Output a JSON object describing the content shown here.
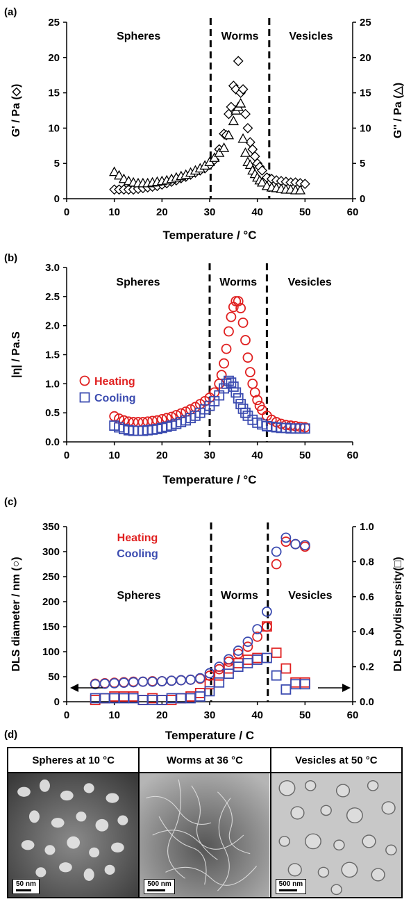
{
  "panel_labels": {
    "a": "(a)",
    "b": "(b)",
    "c": "(c)",
    "d": "(d)"
  },
  "colors": {
    "heating": "#e02020",
    "cooling": "#3b4bb0",
    "black": "#000000"
  },
  "chart_data": [
    {
      "id": "a",
      "type": "scatter",
      "xlabel": "Temperature / °C",
      "ylabel": "G' / Pa (◇)",
      "y2label": "G'' / Pa (△)",
      "xlim": [
        0,
        60
      ],
      "ylim": [
        0,
        25
      ],
      "y2lim": [
        0,
        25
      ],
      "xticks": [
        "0",
        "10",
        "20",
        "30",
        "40",
        "50",
        "60"
      ],
      "yticks": [
        "0",
        "5",
        "10",
        "15",
        "20",
        "25"
      ],
      "y2ticks": [
        "0",
        "5",
        "10",
        "15",
        "20",
        "25"
      ],
      "regions": [
        "Spheres",
        "Worms",
        "Vesicles"
      ],
      "boundaries": [
        30.2,
        42.5
      ],
      "series": [
        {
          "marker": "diamond",
          "axis": "left",
          "x": [
            10,
            11,
            12,
            13,
            14,
            15,
            16,
            17,
            18,
            19,
            20,
            21,
            22,
            23,
            24,
            25,
            26,
            27,
            28,
            29,
            30,
            31,
            32,
            33,
            33.5,
            34,
            34.5,
            35,
            35.5,
            36,
            36.5,
            37,
            37.5,
            38,
            38.5,
            39,
            39.5,
            40,
            40.5,
            41,
            42,
            43,
            44,
            45,
            46,
            47,
            48,
            49,
            50
          ],
          "y": [
            1.3,
            1.3,
            1.3,
            1.3,
            1.3,
            1.4,
            1.5,
            1.6,
            1.7,
            1.8,
            2.0,
            2.2,
            2.4,
            2.6,
            2.9,
            3.1,
            3.4,
            3.7,
            4.0,
            4.3,
            4.8,
            5.5,
            7.0,
            9.2,
            9.0,
            12.0,
            13.0,
            16.0,
            15.5,
            19.5,
            15.0,
            15.5,
            12.0,
            10.0,
            8.0,
            7.0,
            6.0,
            5.0,
            4.5,
            4.0,
            3.0,
            2.8,
            2.6,
            2.5,
            2.4,
            2.3,
            2.3,
            2.2,
            2.1
          ]
        },
        {
          "marker": "triangle",
          "axis": "right",
          "x": [
            10,
            11,
            12,
            13,
            14,
            15,
            16,
            17,
            18,
            19,
            20,
            21,
            22,
            23,
            24,
            25,
            26,
            27,
            28,
            29,
            30,
            31,
            32,
            33,
            34,
            35,
            35.5,
            36,
            36.5,
            37,
            37.5,
            38,
            38.5,
            39,
            39.5,
            40,
            40.5,
            41,
            42,
            43,
            44,
            45,
            46,
            47,
            48,
            49
          ],
          "y": [
            3.8,
            3.3,
            2.8,
            2.5,
            2.3,
            2.2,
            2.2,
            2.2,
            2.3,
            2.4,
            2.5,
            2.6,
            2.8,
            3.0,
            3.2,
            3.4,
            3.7,
            4.0,
            4.3,
            4.7,
            5.2,
            5.8,
            6.5,
            7.2,
            9.0,
            11.0,
            12.5,
            13.0,
            13.5,
            8.5,
            6.5,
            5.2,
            4.8,
            4.0,
            3.5,
            3.0,
            2.6,
            2.3,
            1.8,
            1.6,
            1.5,
            1.4,
            1.3,
            1.3,
            1.2,
            1.2
          ]
        }
      ]
    },
    {
      "id": "b",
      "type": "scatter",
      "xlabel": "Temperature / °C",
      "ylabel": "|η| / Pa.S",
      "xlim": [
        0,
        60
      ],
      "ylim": [
        0,
        3.0
      ],
      "xticks": [
        "0",
        "10",
        "20",
        "30",
        "40",
        "50",
        "60"
      ],
      "yticks": [
        "0.0",
        "0.5",
        "1.0",
        "1.5",
        "2.0",
        "2.5",
        "3.0"
      ],
      "regions": [
        "Spheres",
        "Worms",
        "Vesicles"
      ],
      "boundaries": [
        30.0,
        42.0
      ],
      "series": [
        {
          "name": "Heating",
          "marker": "circle",
          "color": "#e02020",
          "x": [
            10,
            11,
            12,
            13,
            14,
            15,
            16,
            17,
            18,
            19,
            20,
            21,
            22,
            23,
            24,
            25,
            26,
            27,
            28,
            29,
            30,
            31,
            32,
            32.5,
            33,
            33.5,
            34,
            34.5,
            35,
            35.5,
            36,
            36.5,
            37,
            37.5,
            38,
            38.5,
            39,
            39.5,
            40,
            40.5,
            41,
            42,
            43,
            44,
            45,
            46,
            47,
            48,
            49,
            50
          ],
          "y": [
            0.44,
            0.4,
            0.37,
            0.35,
            0.34,
            0.34,
            0.34,
            0.35,
            0.36,
            0.37,
            0.39,
            0.41,
            0.43,
            0.46,
            0.49,
            0.52,
            0.56,
            0.6,
            0.65,
            0.7,
            0.76,
            0.85,
            1.0,
            1.15,
            1.35,
            1.6,
            1.9,
            2.15,
            2.32,
            2.42,
            2.42,
            2.3,
            2.05,
            1.75,
            1.45,
            1.2,
            1.0,
            0.85,
            0.72,
            0.62,
            0.55,
            0.45,
            0.38,
            0.34,
            0.31,
            0.29,
            0.28,
            0.27,
            0.26,
            0.25
          ]
        },
        {
          "name": "Cooling",
          "marker": "square",
          "color": "#3b4bb0",
          "x": [
            10,
            11,
            12,
            13,
            14,
            15,
            16,
            17,
            18,
            19,
            20,
            21,
            22,
            23,
            24,
            25,
            26,
            27,
            28,
            29,
            30,
            31,
            32,
            33,
            33.5,
            34,
            34.5,
            35,
            35.5,
            36,
            36.5,
            37,
            37.5,
            38,
            39,
            40,
            41,
            42,
            43,
            44,
            45,
            46,
            47,
            48,
            49,
            50
          ],
          "y": [
            0.28,
            0.25,
            0.22,
            0.2,
            0.19,
            0.19,
            0.19,
            0.2,
            0.21,
            0.22,
            0.24,
            0.26,
            0.28,
            0.31,
            0.34,
            0.37,
            0.41,
            0.45,
            0.5,
            0.56,
            0.62,
            0.7,
            0.8,
            0.92,
            1.0,
            1.05,
            1.02,
            0.95,
            0.85,
            0.75,
            0.65,
            0.57,
            0.5,
            0.45,
            0.38,
            0.33,
            0.3,
            0.27,
            0.26,
            0.25,
            0.24,
            0.24,
            0.23,
            0.23,
            0.23,
            0.23
          ]
        }
      ],
      "legend": [
        "Heating",
        "Cooling"
      ],
      "legend_placement": "left-middle"
    },
    {
      "id": "c",
      "type": "scatter",
      "xlabel": "Temperature / C",
      "ylabel": "DLS diameter / nm (○)",
      "y2label": "DLS polydispersity(□)",
      "xlim": [
        0,
        60
      ],
      "ylim": [
        0,
        350
      ],
      "y2lim": [
        0,
        1.0
      ],
      "xticks": [
        "0",
        "10",
        "20",
        "30",
        "40",
        "50",
        "60"
      ],
      "yticks": [
        "0",
        "50",
        "100",
        "150",
        "200",
        "250",
        "300",
        "350"
      ],
      "y2ticks": [
        "0.0",
        "0.2",
        "0.4",
        "0.6",
        "0.8",
        "1.0"
      ],
      "regions": [
        "Spheres",
        "Worms",
        "Vesicles"
      ],
      "boundaries": [
        30.3,
        42.2
      ],
      "legend": [
        "Heating",
        "Cooling"
      ],
      "legend_placement": "top-left",
      "series": [
        {
          "name": "Heating diameter",
          "marker": "circle",
          "color": "#e02020",
          "axis": "left",
          "x": [
            6,
            8,
            10,
            12,
            14,
            16,
            18,
            20,
            22,
            24,
            26,
            28,
            30,
            32,
            34,
            36,
            38,
            40,
            42,
            44,
            46,
            48,
            50
          ],
          "y": [
            36,
            37,
            38,
            39,
            40,
            40,
            41,
            41,
            42,
            43,
            44,
            46,
            52,
            65,
            80,
            96,
            110,
            130,
            150,
            275,
            320,
            315,
            310
          ]
        },
        {
          "name": "Cooling diameter",
          "marker": "circle",
          "color": "#3b4bb0",
          "axis": "left",
          "x": [
            6,
            8,
            10,
            12,
            14,
            16,
            18,
            20,
            22,
            24,
            26,
            28,
            30,
            32,
            34,
            36,
            38,
            40,
            42,
            44,
            46,
            48,
            50
          ],
          "y": [
            35,
            36,
            37,
            38,
            39,
            40,
            40,
            41,
            42,
            43,
            44,
            47,
            57,
            70,
            85,
            102,
            120,
            145,
            180,
            300,
            328,
            315,
            313
          ]
        },
        {
          "name": "Heating PDI",
          "marker": "square",
          "color": "#e02020",
          "axis": "right",
          "x": [
            6,
            8,
            10,
            12,
            14,
            16,
            18,
            20,
            22,
            24,
            26,
            28,
            30,
            32,
            34,
            36,
            38,
            40,
            42,
            44,
            46,
            48,
            50
          ],
          "y": [
            0.01,
            0.02,
            0.03,
            0.03,
            0.03,
            0.01,
            0.02,
            0.01,
            0.01,
            0.02,
            0.03,
            0.05,
            0.1,
            0.15,
            0.19,
            0.22,
            0.24,
            0.25,
            0.43,
            0.28,
            0.19,
            0.11,
            0.11
          ]
        },
        {
          "name": "Cooling PDI",
          "marker": "square",
          "color": "#3b4bb0",
          "axis": "right",
          "x": [
            6,
            8,
            10,
            12,
            14,
            16,
            18,
            20,
            22,
            24,
            26,
            28,
            30,
            32,
            34,
            36,
            38,
            40,
            42,
            44,
            46,
            48,
            50
          ],
          "y": [
            0.02,
            0.02,
            0.02,
            0.02,
            0.02,
            0.01,
            0.01,
            0.01,
            0.02,
            0.02,
            0.02,
            0.03,
            0.06,
            0.11,
            0.16,
            0.2,
            0.22,
            0.24,
            0.25,
            0.15,
            0.07,
            0.1,
            0.1
          ]
        }
      ]
    }
  ],
  "tem_panels": [
    {
      "title": "Spheres at 10 °C",
      "scalebar": "50 nm"
    },
    {
      "title": "Worms at 36 °C",
      "scalebar": "500 nm"
    },
    {
      "title": "Vesicles at 50 °C",
      "scalebar": "500 nm"
    }
  ]
}
